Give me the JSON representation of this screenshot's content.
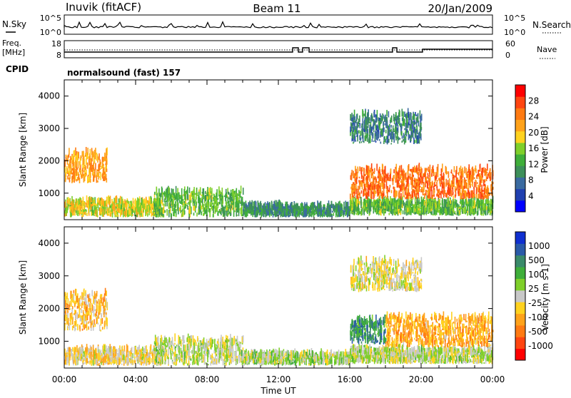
{
  "header": {
    "station": "Inuvik (fitACF)",
    "beam": "Beam 11",
    "date": "20/Jan/2009"
  },
  "noise_panel": {
    "left_label": "N.Sky",
    "left_ticks": [
      "10^5",
      "10^0"
    ],
    "right_label": "N.Search",
    "right_ticks": [
      "10^5",
      "10^0"
    ]
  },
  "freq_panel": {
    "left_label_line1": "Freq.",
    "left_label_line2": "[MHz]",
    "left_ticks": [
      "18",
      "8"
    ],
    "right_label": "Nave",
    "right_ticks": [
      "60",
      "0"
    ]
  },
  "cpid": {
    "label": "CPID",
    "text": "normalsound (fast) 157"
  },
  "colors": {
    "scale_power": [
      "#0000ff",
      "#2040b0",
      "#3a6aa0",
      "#3d8f5a",
      "#3fae3a",
      "#7fcf2a",
      "#ffd21f",
      "#ffa21a",
      "#ff7a12",
      "#ff4510",
      "#ff0000"
    ],
    "scale_velocity": [
      "#ff0000",
      "#ff4510",
      "#ff7a12",
      "#ffa21a",
      "#ffd21f",
      "#c8c8c8",
      "#7fcf2a",
      "#3fae3a",
      "#3a8a6a",
      "#2a5aa8",
      "#1030d0"
    ]
  },
  "chart_data": [
    {
      "type": "heatmap",
      "panel": "power",
      "ylabel": "Slant Range [km]",
      "yticks": [
        "1000",
        "2000",
        "3000",
        "4000"
      ],
      "ylim": [
        180,
        4500
      ],
      "xlim": [
        0,
        24
      ],
      "colorbar_label": "Power [dB]",
      "colorbar_ticks": [
        "4",
        "8",
        "12",
        "16",
        "20",
        "24",
        "28"
      ],
      "colorbar_range": [
        0,
        32
      ],
      "regions": [
        {
          "t": [
            0,
            2.4
          ],
          "r": [
            1300,
            2200
          ],
          "v": 22
        },
        {
          "t": [
            0,
            5.5
          ],
          "r": [
            250,
            700
          ],
          "v": 18
        },
        {
          "t": [
            5,
            10
          ],
          "r": [
            250,
            1000
          ],
          "v": 14
        },
        {
          "t": [
            10,
            16
          ],
          "r": [
            250,
            550
          ],
          "v": 10
        },
        {
          "t": [
            16,
            24
          ],
          "r": [
            300,
            700
          ],
          "v": 14
        },
        {
          "t": [
            16,
            24
          ],
          "r": [
            800,
            1700
          ],
          "v": 25
        },
        {
          "t": [
            16,
            20
          ],
          "r": [
            2500,
            3400
          ],
          "v": 9
        }
      ]
    },
    {
      "type": "heatmap",
      "panel": "velocity",
      "ylabel": "Slant Range [km]",
      "yticks": [
        "1000",
        "2000",
        "3000",
        "4000"
      ],
      "ylim": [
        180,
        4500
      ],
      "xlim": [
        0,
        24
      ],
      "colorbar_label": "Velocity [m s-1]",
      "colorbar_ticks": [
        "-1000",
        "-500",
        "-100",
        "-25",
        "25",
        "100",
        "500",
        "1000"
      ],
      "colorbar_range": [
        -1200,
        1200
      ],
      "regions": [
        {
          "t": [
            0,
            2.4
          ],
          "r": [
            1300,
            2400
          ],
          "v": -300
        },
        {
          "t": [
            0,
            5.5
          ],
          "r": [
            250,
            700
          ],
          "v": -150
        },
        {
          "t": [
            5,
            10
          ],
          "r": [
            250,
            1000
          ],
          "v": 50
        },
        {
          "t": [
            10,
            16
          ],
          "r": [
            250,
            550
          ],
          "v": 120
        },
        {
          "t": [
            16,
            24
          ],
          "r": [
            300,
            700
          ],
          "v": 60
        },
        {
          "t": [
            16,
            18
          ],
          "r": [
            900,
            1600
          ],
          "v": 600
        },
        {
          "t": [
            18,
            24
          ],
          "r": [
            800,
            1700
          ],
          "v": -400
        },
        {
          "t": [
            16,
            20
          ],
          "r": [
            2500,
            3400
          ],
          "v": -80
        }
      ]
    }
  ],
  "time_axis": {
    "ticks": [
      "00:00",
      "04:00",
      "08:00",
      "12:00",
      "16:00",
      "20:00",
      "00:00"
    ],
    "label": "Time UT"
  }
}
